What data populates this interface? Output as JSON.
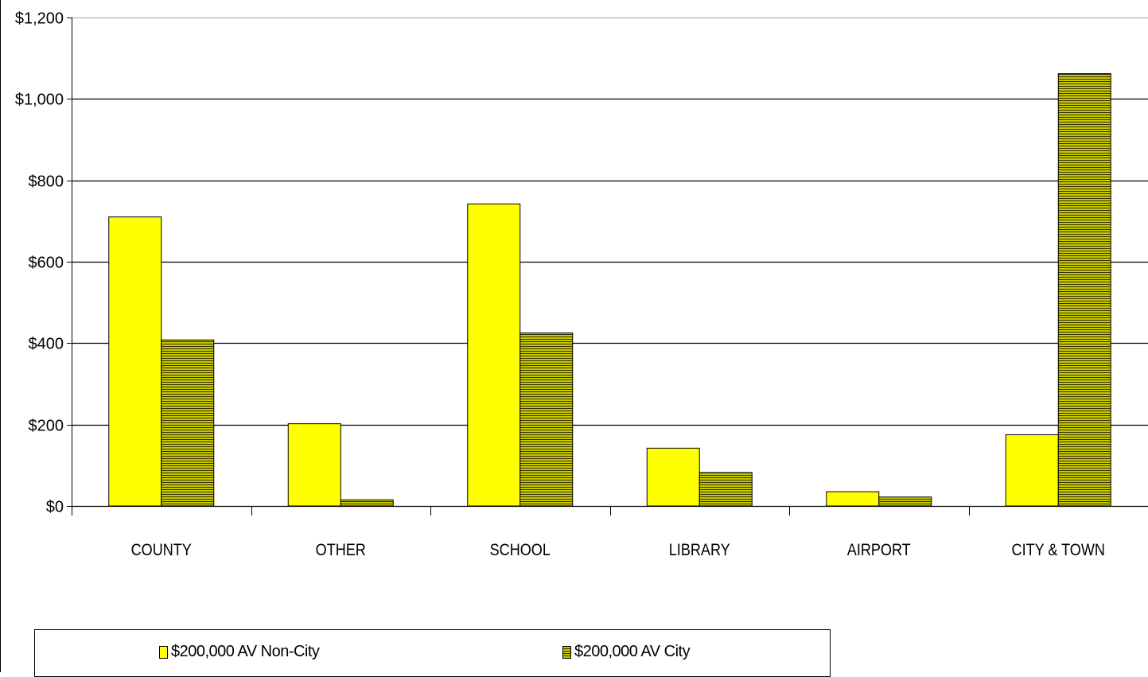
{
  "chart_data": {
    "type": "bar",
    "categories": [
      "COUNTY",
      "OTHER",
      "SCHOOL",
      "LIBRARY",
      "AIRPORT",
      "CITY & TOWN"
    ],
    "series": [
      {
        "name": "$200,000 AV Non-City",
        "values": [
          710,
          202,
          742,
          142,
          35,
          175
        ],
        "color": "#FFFF00",
        "pattern": "solid"
      },
      {
        "name": "$200,000 AV City",
        "values": [
          408,
          15,
          425,
          82,
          22,
          1062
        ],
        "color": "#999900",
        "pattern": "horizontal-stripes"
      }
    ],
    "y_ticks": [
      "$0",
      "$200",
      "$400",
      "$600",
      "$800",
      "$1,000",
      "$1,200"
    ],
    "ylim": [
      0,
      1200
    ],
    "y_step": 200,
    "grid": true,
    "legend_position": "bottom",
    "title": "",
    "xlabel": "",
    "ylabel": ""
  }
}
